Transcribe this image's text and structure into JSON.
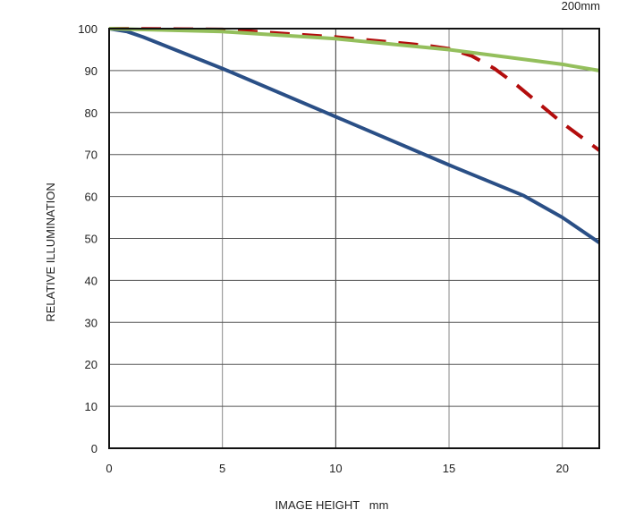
{
  "chart_data": {
    "type": "line",
    "title": "200mm",
    "xlabel": "IMAGE HEIGHT   mm",
    "ylabel": "RELATIVE ILLUMINATION",
    "xlim": [
      0,
      21.63
    ],
    "ylim": [
      0,
      100
    ],
    "xticks": [
      0,
      5,
      10,
      15,
      20
    ],
    "yticks": [
      0,
      10,
      20,
      30,
      40,
      50,
      60,
      70,
      80,
      90,
      100
    ],
    "grid": true,
    "series": [
      {
        "name": "series-blue",
        "color": "#2a4f86",
        "dash": false,
        "x": [
          0,
          0.8,
          1.5,
          5,
          10,
          15,
          18.3,
          20,
          21.63
        ],
        "y": [
          100,
          99.3,
          98,
          90.5,
          79,
          67.5,
          60.2,
          55,
          49
        ]
      },
      {
        "name": "series-red-dashed",
        "color": "#b30d0d",
        "dash": true,
        "x": [
          0,
          5,
          10,
          14,
          15,
          16,
          17,
          18,
          19,
          20,
          21.63
        ],
        "y": [
          100,
          99.8,
          98,
          96,
          95.2,
          93.5,
          90.5,
          86.5,
          82,
          77.5,
          71
        ]
      },
      {
        "name": "series-green",
        "color": "#94bf5c",
        "dash": false,
        "x": [
          0,
          5,
          10,
          15,
          20,
          21.63
        ],
        "y": [
          100,
          99.3,
          97.6,
          95,
          91.5,
          90
        ]
      }
    ]
  }
}
